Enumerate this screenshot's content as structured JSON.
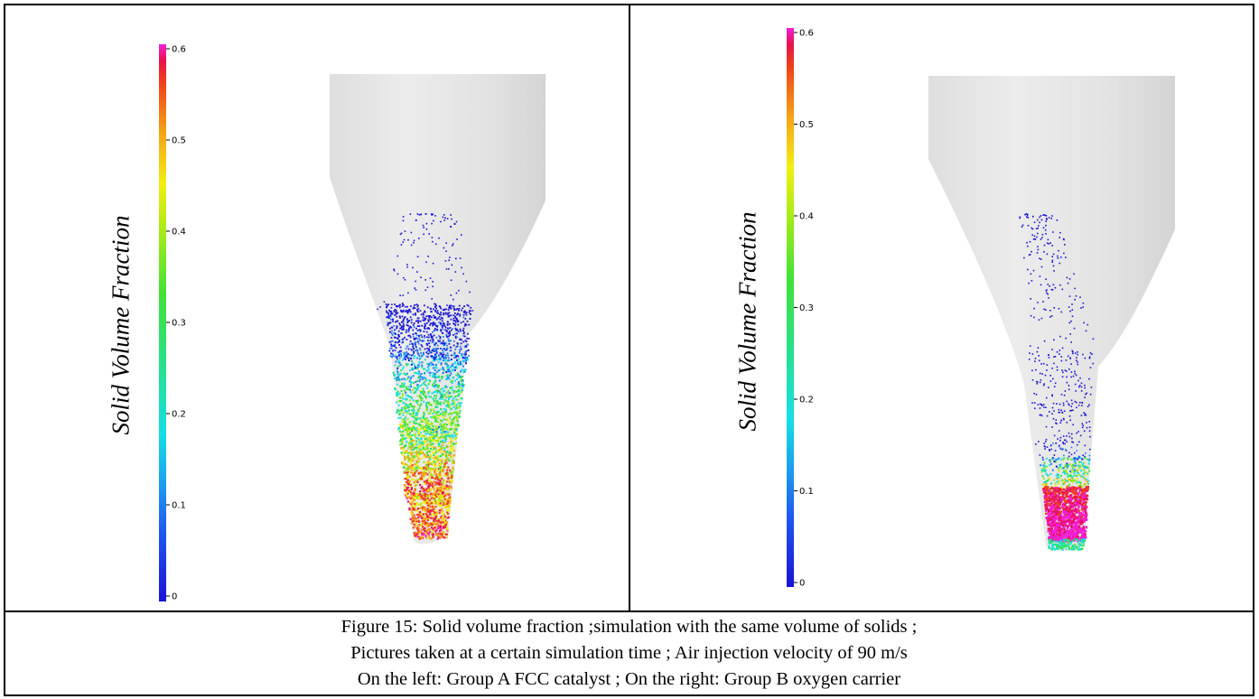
{
  "left_panel": {
    "colorbar_label": "Solid Volume Fraction",
    "colorbar_ticks": [
      "0.6",
      "0.5",
      "0.4",
      "0.3",
      "0.2",
      "0.1",
      "0"
    ]
  },
  "right_panel": {
    "colorbar_label": "Solid Volume Fraction",
    "colorbar_ticks": [
      "0.6",
      "0.5",
      "0.4",
      "0.3",
      "0.2",
      "0.1",
      "0"
    ]
  },
  "caption": {
    "line1": "Figure 15: Solid volume fraction ;simulation with the same volume of solids ;",
    "line2": "Pictures taken at a certain simulation time ; Air injection velocity of 90 m/s",
    "line3": "On the left: Group A FCC catalyst ; On the right: Group B oxygen carrier"
  },
  "colormap": [
    "#1b14d6",
    "#1f7cf2",
    "#14e0e8",
    "#2fe24a",
    "#9bea1c",
    "#f2ee12",
    "#f5a416",
    "#f04218",
    "#e8125c",
    "#f21fd6"
  ],
  "hopper_color": "#e6e6e6"
}
